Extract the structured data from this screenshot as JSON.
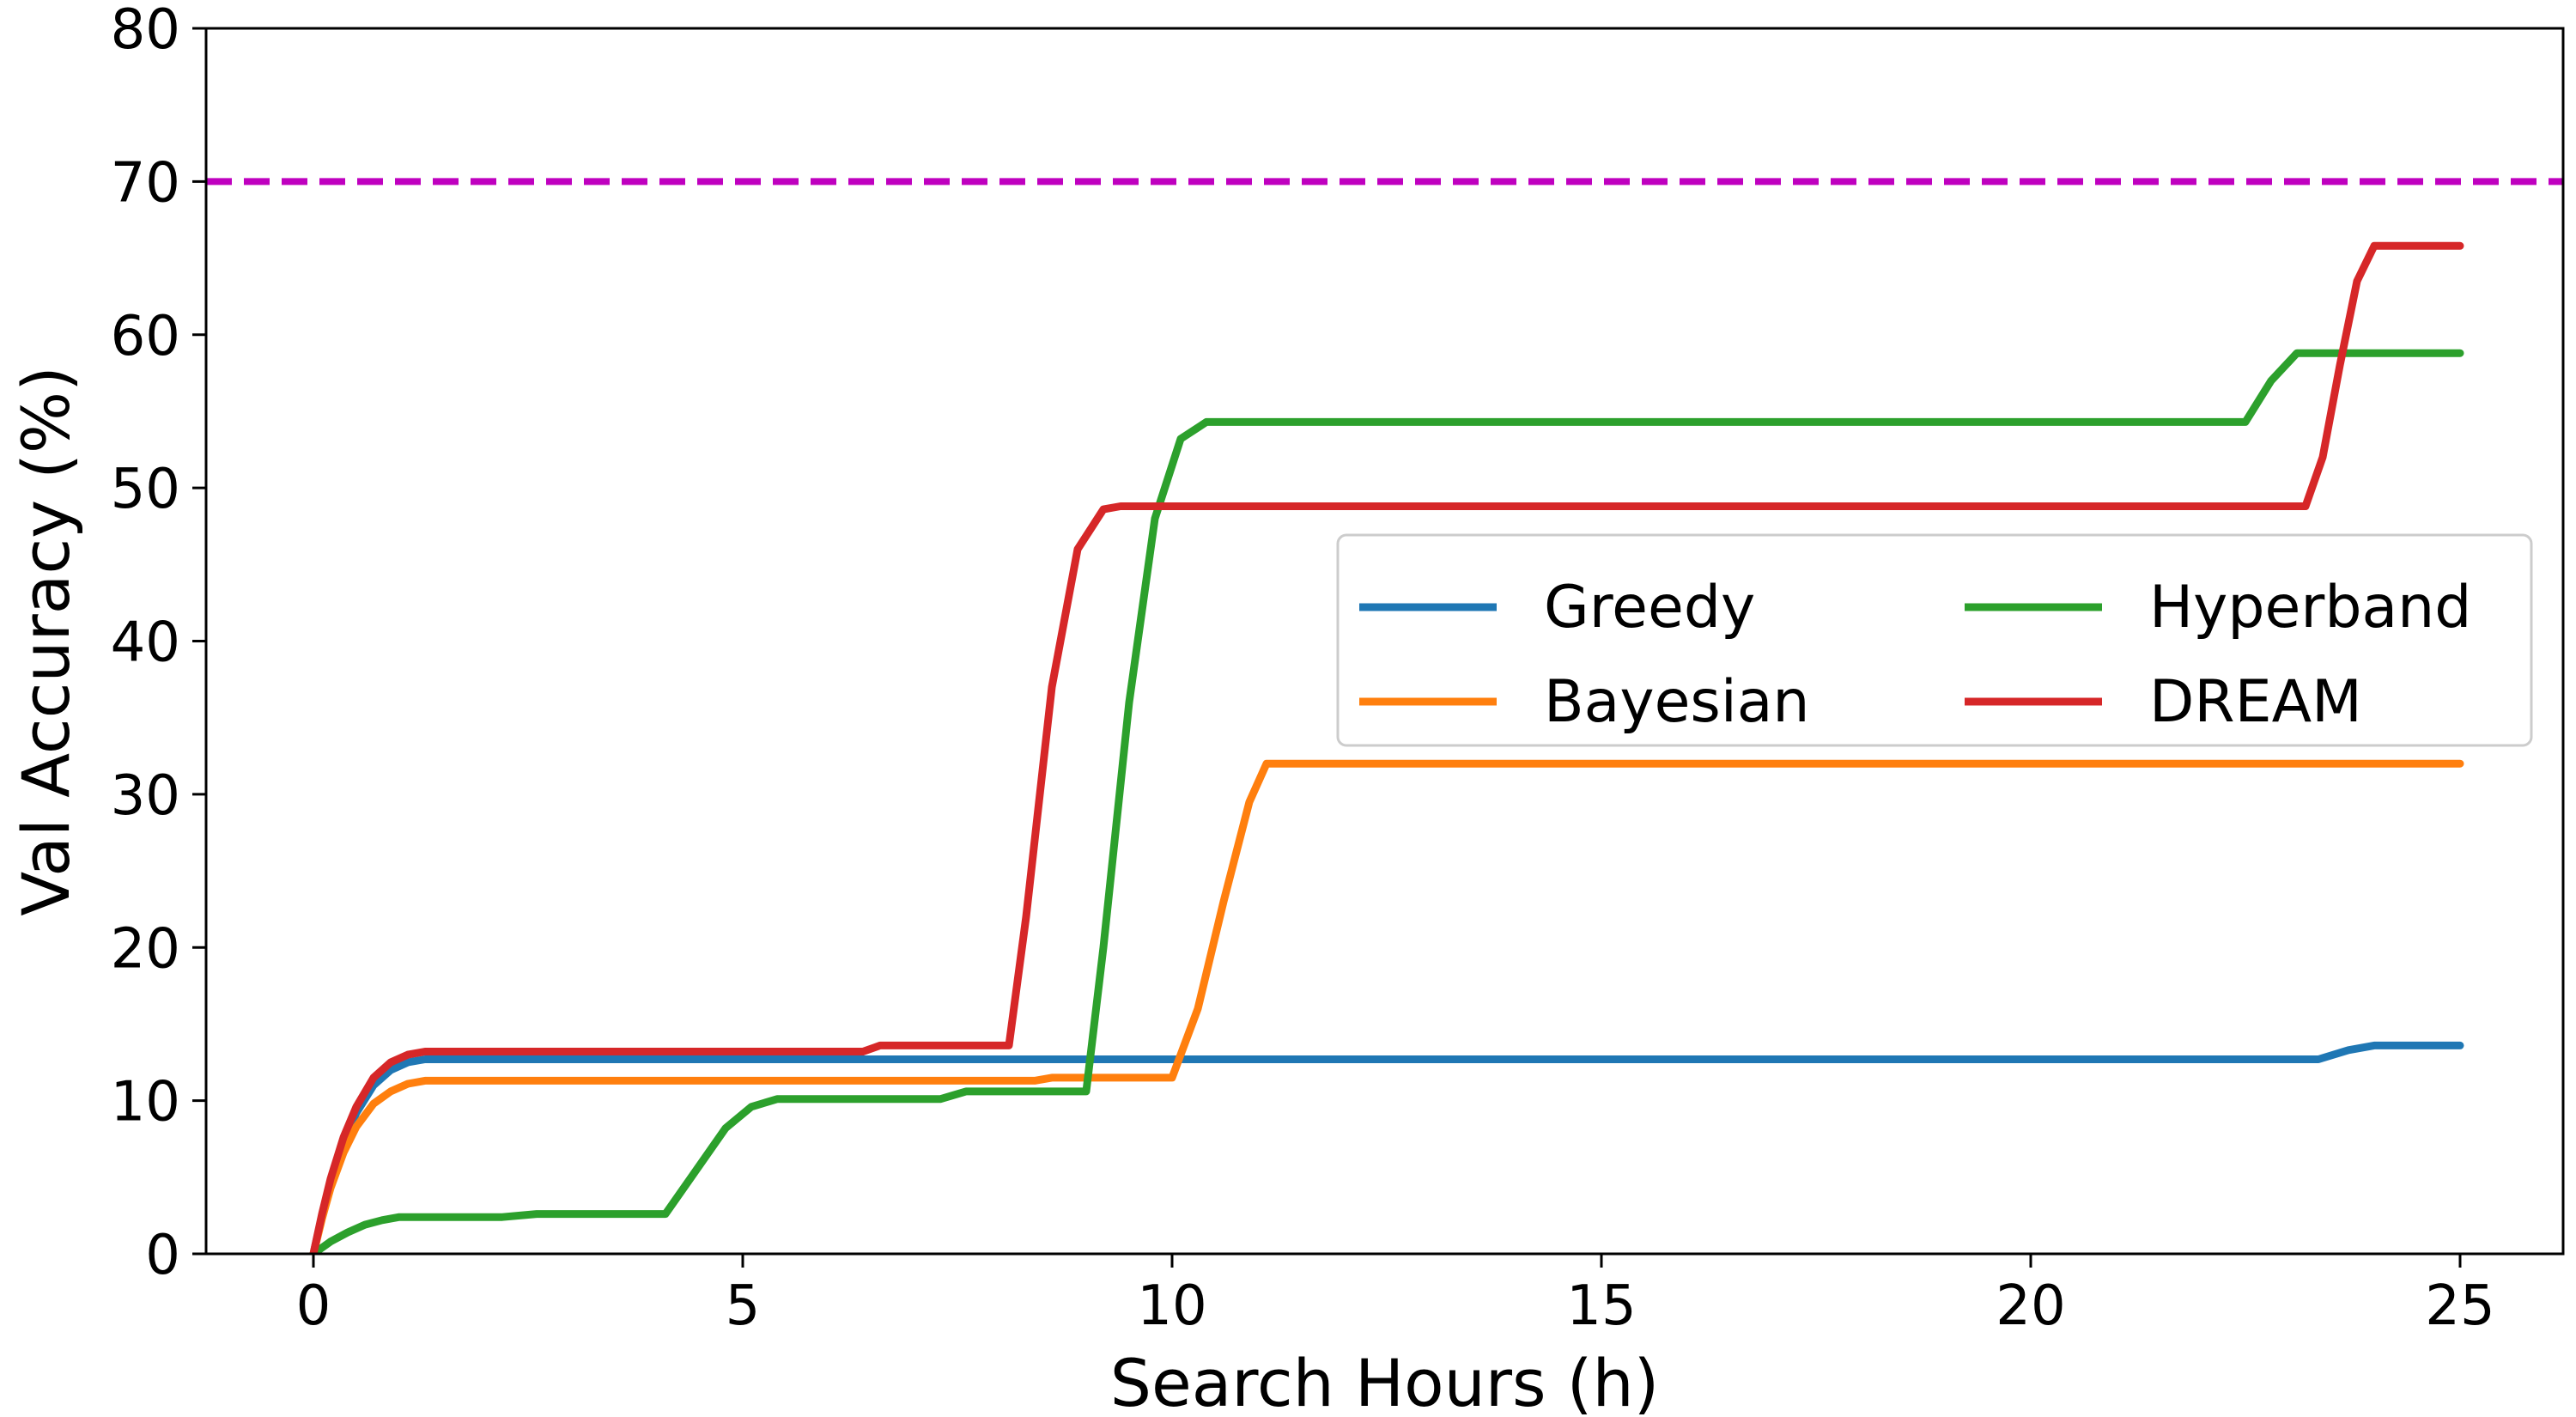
{
  "chart_data": {
    "type": "line",
    "xlabel": "Search Hours (h)",
    "ylabel": "Val Accuracy (%)",
    "xlim": [
      -1.25,
      26.2
    ],
    "ylim": [
      0,
      80
    ],
    "xticks": [
      0,
      5,
      10,
      15,
      20,
      25
    ],
    "yticks": [
      0,
      10,
      20,
      30,
      40,
      50,
      60,
      70,
      80
    ],
    "grid": false,
    "legend_position": "right",
    "reference_line": {
      "y": 70,
      "color": "#bf00bf",
      "style": "dashed"
    },
    "series": [
      {
        "name": "Greedy",
        "color": "#1f77b4",
        "x": [
          0,
          0.1,
          0.2,
          0.35,
          0.5,
          0.7,
          0.9,
          1.1,
          1.3,
          5,
          10,
          15,
          20,
          23.35,
          23.7,
          24,
          25
        ],
        "y": [
          0,
          2.5,
          4.7,
          7.3,
          9.2,
          11.0,
          12.0,
          12.5,
          12.7,
          12.7,
          12.7,
          12.7,
          12.7,
          12.7,
          13.3,
          13.6,
          13.6
        ]
      },
      {
        "name": "Bayesian",
        "color": "#ff7f0e",
        "x": [
          0,
          0.1,
          0.2,
          0.35,
          0.5,
          0.7,
          0.9,
          1.1,
          1.3,
          5,
          8.4,
          8.6,
          10.0,
          10.3,
          10.6,
          10.9,
          11.1,
          15,
          20,
          25
        ],
        "y": [
          0,
          2.3,
          4.3,
          6.6,
          8.3,
          9.8,
          10.6,
          11.1,
          11.3,
          11.3,
          11.3,
          11.5,
          11.5,
          16,
          23,
          29.5,
          32.0,
          32.0,
          32.0,
          32.0
        ]
      },
      {
        "name": "Hyperband",
        "color": "#2ca02c",
        "x": [
          0,
          0.2,
          0.4,
          0.6,
          0.8,
          1.0,
          1.2,
          2.2,
          2.6,
          4.1,
          4.4,
          4.8,
          5.1,
          5.4,
          7.3,
          7.6,
          9.0,
          9.2,
          9.5,
          9.8,
          10.1,
          10.4,
          15,
          20,
          22.5,
          22.8,
          23.1,
          25
        ],
        "y": [
          0,
          0.8,
          1.4,
          1.9,
          2.2,
          2.4,
          2.4,
          2.4,
          2.6,
          2.6,
          5,
          8.2,
          9.6,
          10.1,
          10.1,
          10.6,
          10.6,
          20,
          36,
          48,
          53.2,
          54.3,
          54.3,
          54.3,
          54.3,
          57.0,
          58.8,
          58.8
        ]
      },
      {
        "name": "DREAM",
        "color": "#d62728",
        "x": [
          0,
          0.1,
          0.2,
          0.35,
          0.5,
          0.7,
          0.9,
          1.1,
          1.3,
          5,
          6.4,
          6.6,
          8.1,
          8.3,
          8.6,
          8.9,
          9.2,
          9.4,
          15,
          20,
          23.2,
          23.4,
          23.6,
          23.8,
          24.0,
          25
        ],
        "y": [
          0,
          2.6,
          4.9,
          7.6,
          9.6,
          11.5,
          12.5,
          13.0,
          13.2,
          13.2,
          13.2,
          13.6,
          13.6,
          22,
          37,
          46,
          48.6,
          48.8,
          48.8,
          48.8,
          48.8,
          52,
          58,
          63.5,
          65.8,
          65.8
        ]
      }
    ]
  }
}
